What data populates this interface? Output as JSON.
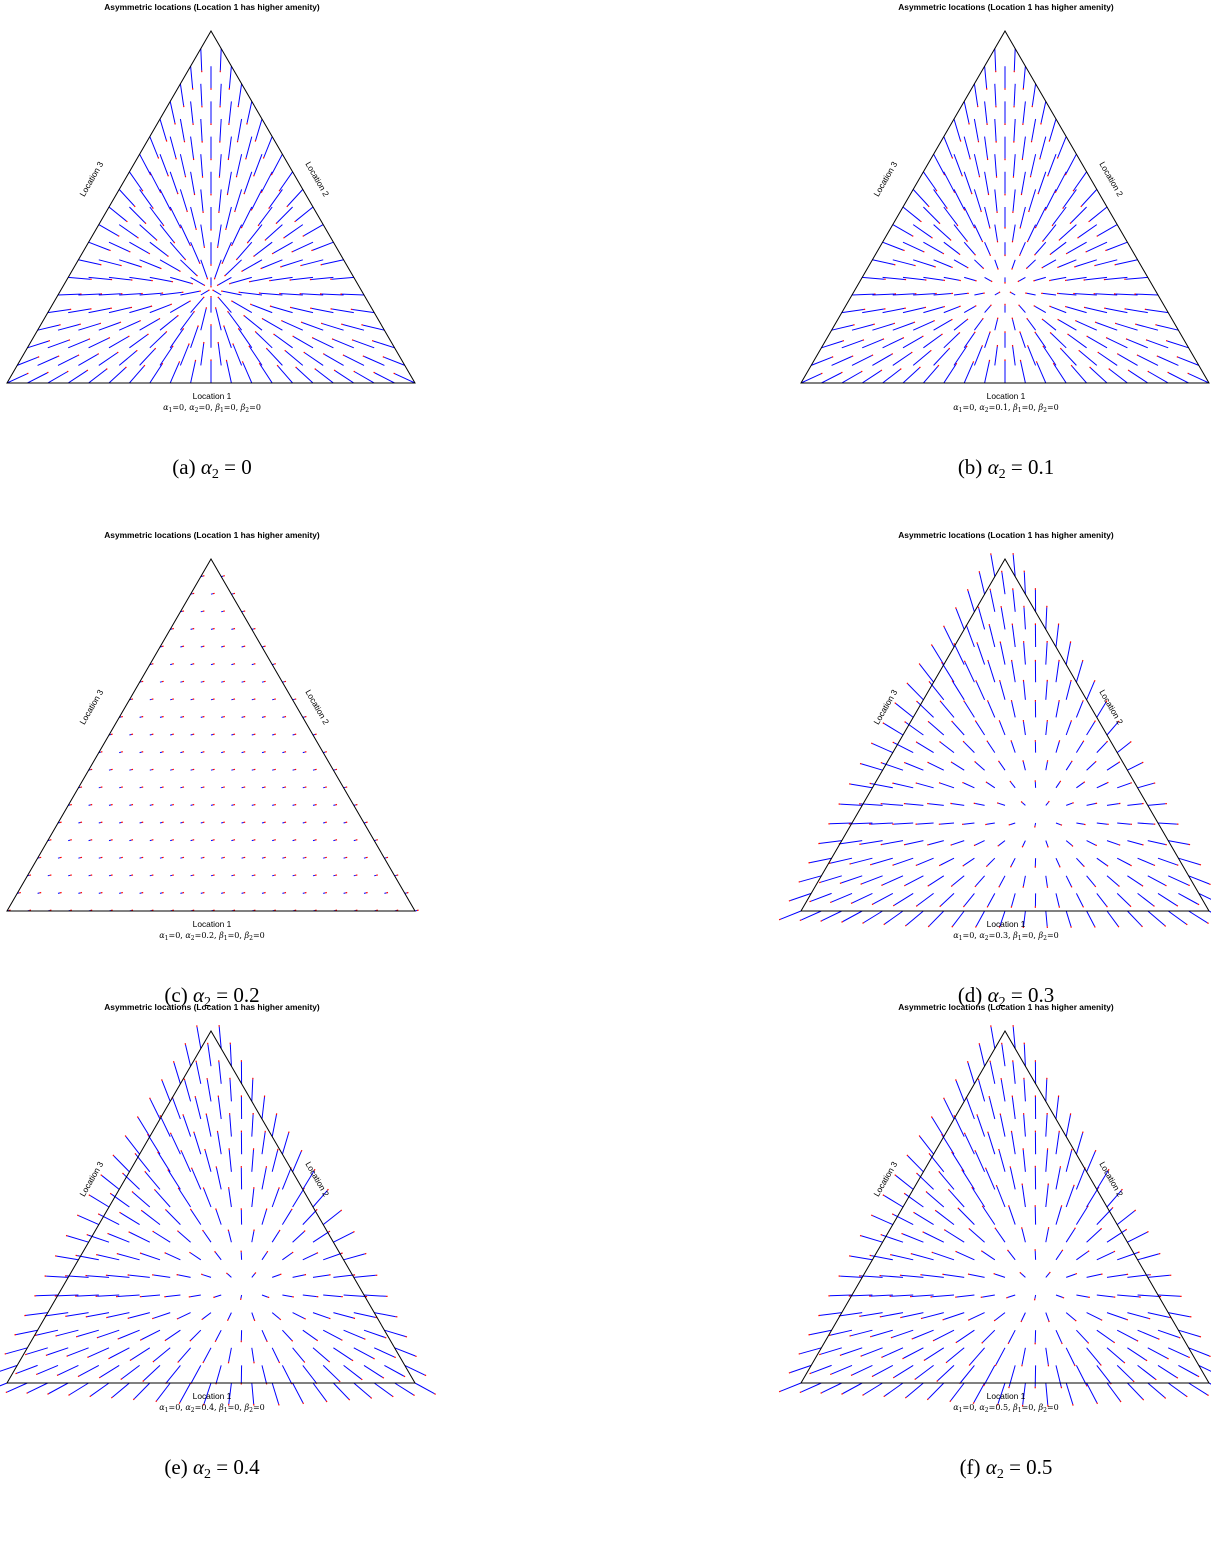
{
  "chart_data": [
    {
      "type": "vector-field",
      "title": "Asymmetric locations (Location 1 has higher amenity)",
      "vertex_labels": {
        "bottom": "Location 1",
        "right": "Location 2",
        "left": "Location 3"
      },
      "parameters": {
        "alpha_1": "0",
        "alpha_2": "0",
        "beta_1": "0",
        "beta_2": "0"
      },
      "caption": {
        "tag": "(a)",
        "symbol": "α",
        "sub": "2",
        "value": "0"
      },
      "colors": {
        "frame": "#000000",
        "arrow": "#0000ff",
        "tip": "#ff0000"
      }
    },
    {
      "type": "vector-field",
      "title": "Asymmetric locations (Location 1 has higher amenity)",
      "vertex_labels": {
        "bottom": "Location 1",
        "right": "Location 2",
        "left": "Location 3"
      },
      "parameters": {
        "alpha_1": "0",
        "alpha_2": "0.1",
        "beta_1": "0",
        "beta_2": "0"
      },
      "caption": {
        "tag": "(b)",
        "symbol": "α",
        "sub": "2",
        "value": "0.1"
      },
      "colors": {
        "frame": "#000000",
        "arrow": "#0000ff",
        "tip": "#ff0000"
      }
    },
    {
      "type": "vector-field",
      "title": "Asymmetric locations (Location 1 has higher amenity)",
      "vertex_labels": {
        "bottom": "Location 1",
        "right": "Location 2",
        "left": "Location 3"
      },
      "parameters": {
        "alpha_1": "0",
        "alpha_2": "0.2",
        "beta_1": "0",
        "beta_2": "0"
      },
      "caption": {
        "tag": "(c)",
        "symbol": "α",
        "sub": "2",
        "value": "0.2"
      },
      "colors": {
        "frame": "#000000",
        "arrow": "#0000ff",
        "tip": "#ff0000"
      }
    },
    {
      "type": "vector-field",
      "title": "Asymmetric locations (Location 1 has higher amenity)",
      "vertex_labels": {
        "bottom": "Location 1",
        "right": "Location 2",
        "left": "Location 3"
      },
      "parameters": {
        "alpha_1": "0",
        "alpha_2": "0.3",
        "beta_1": "0",
        "beta_2": "0"
      },
      "caption": {
        "tag": "(d)",
        "symbol": "α",
        "sub": "2",
        "value": "0.3"
      },
      "colors": {
        "frame": "#000000",
        "arrow": "#0000ff",
        "tip": "#ff0000"
      }
    },
    {
      "type": "vector-field",
      "title": "Asymmetric locations (Location 1 has higher amenity)",
      "vertex_labels": {
        "bottom": "Location 1",
        "right": "Location 2",
        "left": "Location 3"
      },
      "parameters": {
        "alpha_1": "0",
        "alpha_2": "0.4",
        "beta_1": "0",
        "beta_2": "0"
      },
      "caption": {
        "tag": "(e)",
        "symbol": "α",
        "sub": "2",
        "value": "0.4"
      },
      "colors": {
        "frame": "#000000",
        "arrow": "#0000ff",
        "tip": "#ff0000"
      }
    },
    {
      "type": "vector-field",
      "title": "Asymmetric locations (Location 1 has higher amenity)",
      "vertex_labels": {
        "bottom": "Location 1",
        "right": "Location 2",
        "left": "Location 3"
      },
      "parameters": {
        "alpha_1": "0",
        "alpha_2": "0.5",
        "beta_1": "0",
        "beta_2": "0"
      },
      "caption": {
        "tag": "(f)",
        "symbol": "α",
        "sub": "2",
        "value": "0.5"
      },
      "colors": {
        "frame": "#000000",
        "arrow": "#0000ff",
        "tip": "#ff0000"
      }
    }
  ]
}
